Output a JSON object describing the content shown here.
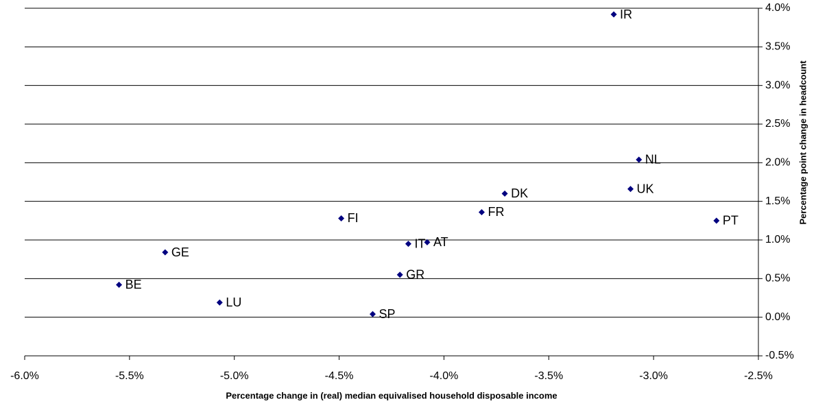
{
  "chart_data": {
    "type": "scatter",
    "x_label": "Percentage change in (real) median equivalised household disposable income",
    "y_label": "Percentage point change in headcount",
    "x": [
      -3.19,
      -3.07,
      -3.11,
      -2.7,
      -3.71,
      -3.82,
      -4.49,
      -4.17,
      -4.08,
      -5.33,
      -4.21,
      -5.55,
      -5.07,
      -4.34
    ],
    "series": [
      {
        "color": "#000080",
        "values": [
          3.92,
          2.04,
          1.66,
          1.25,
          1.6,
          1.36,
          1.28,
          0.95,
          0.97,
          0.84,
          0.55,
          0.42,
          0.19,
          0.04
        ]
      }
    ],
    "point_labels": [
      "IR",
      "NL",
      "UK",
      "PT",
      "DK",
      "FR",
      "FI",
      "IT",
      "AT",
      "GE",
      "GR",
      "BE",
      "LU",
      "SP"
    ],
    "xlim": [
      -6.0,
      -2.5
    ],
    "xticks": [
      {
        "value": -6.0,
        "label": "-6.0%"
      },
      {
        "value": -5.5,
        "label": "-5.5%"
      },
      {
        "value": -5.0,
        "label": "-5.0%"
      },
      {
        "value": -4.5,
        "label": "-4.5%"
      },
      {
        "value": -4.0,
        "label": "-4.0%"
      },
      {
        "value": -3.5,
        "label": "-3.5%"
      },
      {
        "value": -3.0,
        "label": "-3.0%"
      },
      {
        "value": -2.5,
        "label": "-2.5%"
      }
    ],
    "ylim": [
      -0.5,
      4.0
    ],
    "yticks": [
      {
        "value": -0.5,
        "label": "-0.5%"
      },
      {
        "value": 0.0,
        "label": "0.0%"
      },
      {
        "value": 0.5,
        "label": "0.5%"
      },
      {
        "value": 1.0,
        "label": "1.0%"
      },
      {
        "value": 1.5,
        "label": "1.5%"
      },
      {
        "value": 2.0,
        "label": "2.0%"
      },
      {
        "value": 2.5,
        "label": "2.5%"
      },
      {
        "value": 3.0,
        "label": "3.0%"
      },
      {
        "value": 3.5,
        "label": "3.5%"
      },
      {
        "value": 4.0,
        "label": "4.0%"
      }
    ],
    "grid": true
  }
}
